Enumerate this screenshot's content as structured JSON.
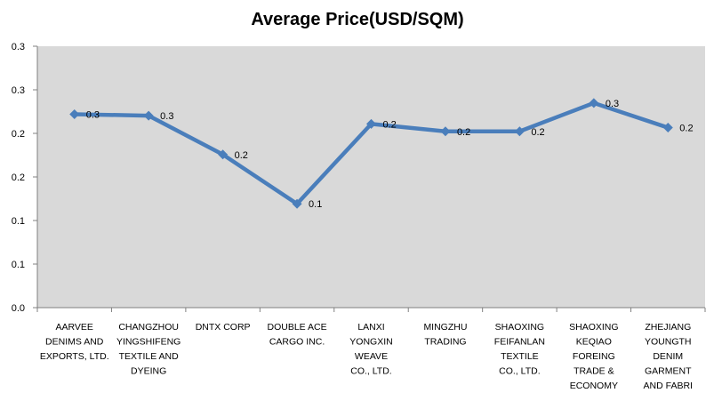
{
  "chart_data": {
    "type": "line",
    "title": "Average Price(USD/SQM)",
    "xlabel": "",
    "ylabel": "",
    "ylim": [
      0.0,
      0.35
    ],
    "y_tick_labels": [
      "0.0",
      "0.1",
      "0.1",
      "0.2",
      "0.2",
      "0.3",
      "0.3"
    ],
    "grid": false,
    "legend": "none",
    "categories": [
      [
        "AARVEE",
        "DENIMS AND",
        "EXPORTS, LTD."
      ],
      [
        "CHANGZHOU",
        "YINGSHIFENG",
        "TEXTILE AND",
        "DYEING"
      ],
      [
        "DNTX CORP"
      ],
      [
        "DOUBLE ACE",
        "CARGO INC."
      ],
      [
        "LANXI",
        "YONGXIN",
        "WEAVE",
        "CO., LTD."
      ],
      [
        "MINGZHU",
        "TRADING"
      ],
      [
        "SHAOXING",
        "FEIFANLAN",
        "TEXTILE",
        "CO., LTD."
      ],
      [
        "SHAOXING",
        "KEQIAO",
        "FOREING",
        "TRADE &",
        "ECONOMY"
      ],
      [
        "ZHEJIANG",
        "YOUNGTH",
        "DENIM",
        "GARMENT",
        "AND FABRI"
      ]
    ],
    "values": [
      0.259,
      0.257,
      0.205,
      0.139,
      0.246,
      0.236,
      0.236,
      0.274,
      0.241
    ],
    "data_labels": [
      "0.3",
      "0.3",
      "0.2",
      "0.1",
      "0.2",
      "0.2",
      "0.2",
      "0.3",
      "0.2"
    ],
    "colors": {
      "series": "#4a7ebb",
      "plot_background": "#d9d9d9",
      "axis": "#808080"
    }
  }
}
